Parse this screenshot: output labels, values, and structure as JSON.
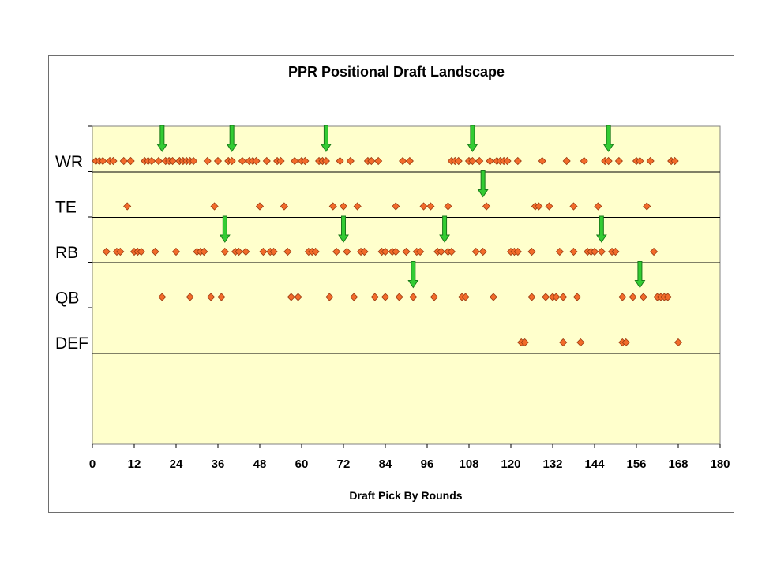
{
  "chart_data": {
    "type": "scatter",
    "title": "PPR Positional Draft Landscape",
    "xlabel": "Draft Pick By Rounds",
    "ylabel": "",
    "xlim": [
      0,
      180
    ],
    "x_ticks": [
      0,
      12,
      24,
      36,
      48,
      60,
      72,
      84,
      96,
      108,
      120,
      132,
      144,
      156,
      168,
      180
    ],
    "categories": [
      "WR",
      "TE",
      "RB",
      "QB",
      "DEF"
    ],
    "grid": "horizontal lines between positions",
    "legend": "none",
    "colors": {
      "marker_fill": "#f26b2a",
      "marker_stroke": "#9a3a10",
      "arrow": "#33cc33",
      "plot_bg": "#ffffcc"
    },
    "series": [
      {
        "category": "WR",
        "x": [
          1,
          2,
          3,
          5,
          6,
          9,
          11,
          15,
          16,
          17,
          19,
          21,
          22,
          23,
          25,
          26,
          27,
          28,
          29,
          33,
          36,
          39,
          40,
          43,
          45,
          46,
          47,
          50,
          53,
          54,
          58,
          60,
          61,
          65,
          66,
          67,
          71,
          74,
          79,
          80,
          82,
          89,
          91,
          103,
          104,
          105,
          108,
          109,
          111,
          114,
          116,
          117,
          118,
          119,
          122,
          129,
          136,
          141,
          147,
          148,
          151,
          156,
          157,
          160,
          166,
          167
        ]
      },
      {
        "category": "TE",
        "x": [
          10,
          35,
          48,
          55,
          69,
          72,
          76,
          87,
          95,
          97,
          102,
          113,
          127,
          128,
          131,
          138,
          145,
          159
        ]
      },
      {
        "category": "RB",
        "x": [
          4,
          7,
          8,
          12,
          13,
          14,
          18,
          24,
          30,
          31,
          32,
          38,
          41,
          42,
          44,
          49,
          51,
          52,
          56,
          62,
          63,
          64,
          70,
          73,
          77,
          78,
          83,
          84,
          86,
          87,
          90,
          93,
          94,
          99,
          100,
          102,
          103,
          110,
          112,
          120,
          121,
          122,
          126,
          134,
          138,
          142,
          143,
          144,
          146,
          149,
          150,
          161
        ]
      },
      {
        "category": "QB",
        "x": [
          20,
          28,
          34,
          37,
          57,
          59,
          68,
          75,
          81,
          84,
          88,
          92,
          98,
          106,
          107,
          115,
          126,
          130,
          132,
          133,
          135,
          139,
          152,
          155,
          158,
          162,
          163,
          164,
          165
        ]
      },
      {
        "category": "DEF",
        "x": [
          123,
          124,
          135,
          140,
          152,
          153,
          168
        ]
      }
    ],
    "annotations": {
      "arrows": [
        {
          "category": "WR",
          "x": [
            20,
            40,
            67,
            109,
            148
          ]
        },
        {
          "category": "TE",
          "x": [
            112
          ]
        },
        {
          "category": "RB",
          "x": [
            38,
            72,
            101,
            146
          ]
        },
        {
          "category": "QB",
          "x": [
            92,
            157
          ]
        }
      ]
    }
  }
}
